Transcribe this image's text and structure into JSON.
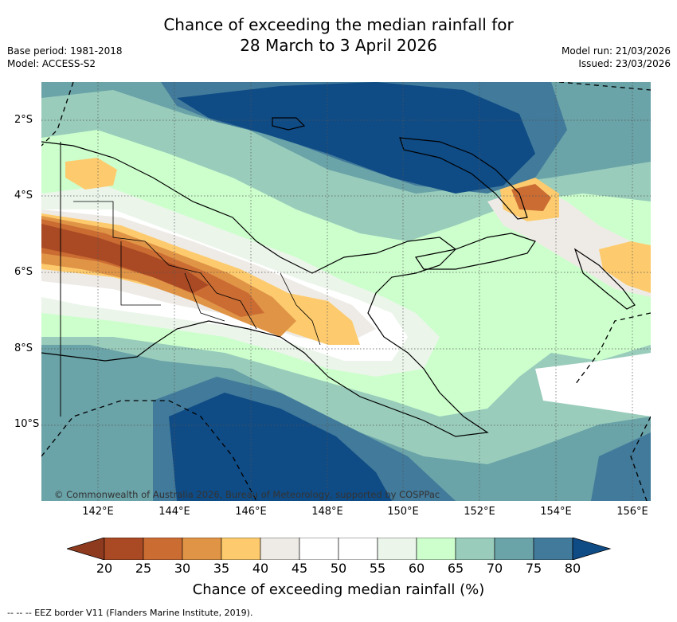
{
  "title": {
    "line1": "Chance of exceeding the median rainfall for",
    "line2": "28 March to 3 April 2026"
  },
  "meta_left": {
    "base_period": "Base period: 1981-2018",
    "model": "Model: ACCESS-S2"
  },
  "meta_right": {
    "model_run": "Model run: 21/03/2026",
    "issued": "Issued: 23/03/2026"
  },
  "map": {
    "region": "Papua New Guinea",
    "latitude_labels": [
      "2°S",
      "4°S",
      "6°S",
      "8°S",
      "10°S"
    ],
    "longitude_labels": [
      "142°E",
      "144°E",
      "146°E",
      "148°E",
      "150°E",
      "152°E",
      "154°E",
      "156°E"
    ],
    "credit": "© Commonwealth of Australia 2026, Bureau of Meteorology, supported by COSPPac"
  },
  "colorbar": {
    "title": "Chance of exceeding median rainfall (%)",
    "ticks": [
      "20",
      "25",
      "30",
      "35",
      "40",
      "45",
      "50",
      "55",
      "60",
      "65",
      "70",
      "75",
      "80"
    ],
    "colors": [
      "#a94a24",
      "#cb6c33",
      "#e09446",
      "#fdcb6e",
      "#eeebe6",
      "#ffffff",
      "#ffffff",
      "#ebf5ea",
      "#ccffcc",
      "#99ccbb",
      "#6aa3a8",
      "#417a9a"
    ],
    "under_color": "#8e3a1e",
    "over_color": "#0f4b85"
  },
  "footer": {
    "eez_note": "--  --  -- EEZ border V11 (Flanders Marine Institute, 2019)."
  }
}
